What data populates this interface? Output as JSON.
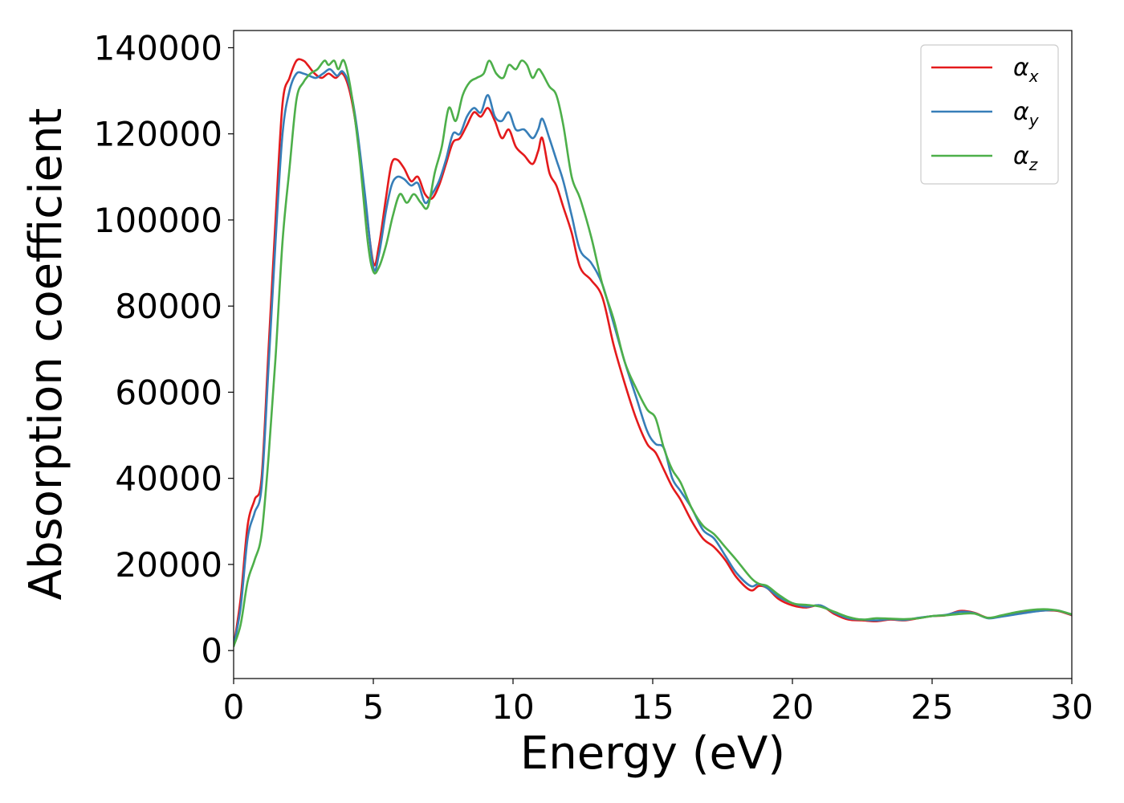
{
  "chart_data": {
    "type": "line",
    "xlabel": "Energy (eV)",
    "ylabel": "Absorption coefficient",
    "xlim": [
      0,
      30
    ],
    "ylim": [
      -6500,
      144000
    ],
    "xticks": [
      0,
      5,
      10,
      15,
      20,
      25,
      30
    ],
    "yticks": [
      0,
      20000,
      40000,
      60000,
      80000,
      100000,
      120000,
      140000
    ],
    "grid": false,
    "legend_position": "top-right",
    "series": [
      {
        "name": "α",
        "subscript": "x",
        "color": "#e41a1c",
        "x": [
          0,
          0.25,
          0.5,
          0.75,
          1.0,
          1.25,
          1.5,
          1.75,
          2.0,
          2.25,
          2.5,
          2.65,
          2.9,
          3.15,
          3.4,
          3.65,
          3.9,
          4.15,
          4.4,
          4.7,
          5.0,
          5.2,
          5.45,
          5.65,
          5.85,
          6.1,
          6.35,
          6.6,
          6.85,
          7.1,
          7.35,
          7.6,
          7.85,
          8.1,
          8.35,
          8.6,
          8.85,
          9.1,
          9.35,
          9.6,
          9.85,
          10.1,
          10.4,
          10.7,
          10.9,
          11.05,
          11.3,
          11.55,
          11.8,
          12.1,
          12.4,
          12.8,
          13.2,
          13.6,
          14.0,
          14.4,
          14.8,
          15.1,
          15.4,
          15.7,
          16.0,
          16.4,
          16.8,
          17.2,
          17.6,
          18.0,
          18.5,
          18.8,
          19.1,
          19.5,
          20.0,
          20.5,
          21.0,
          21.5,
          22.0,
          22.5,
          23.0,
          23.5,
          24.0,
          24.5,
          25.0,
          25.5,
          26.0,
          26.5,
          27.0,
          27.5,
          28.0,
          28.5,
          29.0,
          29.5,
          30.0
        ],
        "y": [
          1000,
          12000,
          29000,
          35000,
          40000,
          70000,
          100000,
          127000,
          133000,
          137000,
          137000,
          136000,
          134000,
          133000,
          134000,
          133000,
          134000,
          130000,
          121000,
          105000,
          90000,
          94000,
          105000,
          113000,
          114000,
          112000,
          109000,
          110000,
          106000,
          105000,
          108000,
          113000,
          118000,
          119000,
          122000,
          125000,
          124000,
          126000,
          123000,
          119000,
          121000,
          117000,
          115000,
          113000,
          116000,
          119000,
          111000,
          108000,
          103000,
          97000,
          89000,
          86000,
          82000,
          71000,
          62000,
          54000,
          48000,
          46000,
          42000,
          38000,
          35000,
          30000,
          26000,
          24000,
          21000,
          17000,
          14000,
          15000,
          14500,
          12000,
          10500,
          10000,
          10500,
          8500,
          7200,
          7000,
          6800,
          7200,
          7000,
          7500,
          8000,
          8200,
          9200,
          8800,
          7600,
          8000,
          8600,
          9000,
          9300,
          9200,
          8200
        ]
      },
      {
        "name": "α",
        "subscript": "y",
        "color": "#377eb8",
        "x": [
          0,
          0.25,
          0.5,
          0.75,
          1.0,
          1.25,
          1.5,
          1.75,
          2.0,
          2.25,
          2.5,
          2.7,
          2.95,
          3.2,
          3.45,
          3.7,
          3.9,
          4.15,
          4.4,
          4.7,
          5.0,
          5.2,
          5.45,
          5.65,
          5.85,
          6.1,
          6.35,
          6.6,
          6.85,
          7.1,
          7.35,
          7.6,
          7.85,
          8.1,
          8.35,
          8.6,
          8.85,
          9.1,
          9.35,
          9.6,
          9.85,
          10.1,
          10.4,
          10.7,
          10.9,
          11.05,
          11.3,
          11.55,
          11.8,
          12.1,
          12.4,
          12.8,
          13.2,
          13.6,
          14.0,
          14.4,
          14.8,
          15.1,
          15.4,
          15.7,
          16.0,
          16.4,
          16.8,
          17.2,
          17.6,
          18.0,
          18.5,
          18.8,
          19.1,
          19.5,
          20.0,
          20.5,
          21.0,
          21.5,
          22.0,
          22.5,
          23.0,
          23.5,
          24.0,
          24.5,
          25.0,
          25.5,
          26.0,
          26.5,
          27.0,
          27.5,
          28.0,
          28.5,
          29.0,
          29.5,
          30.0
        ],
        "y": [
          1000,
          10000,
          26000,
          32000,
          38000,
          66000,
          95000,
          120000,
          130000,
          134000,
          134000,
          133500,
          133000,
          134000,
          135000,
          133500,
          134500,
          131000,
          122000,
          106000,
          89000,
          92000,
          102000,
          108000,
          110000,
          109500,
          108000,
          108500,
          104000,
          106000,
          109000,
          114000,
          120000,
          120000,
          124000,
          126000,
          125000,
          129000,
          124000,
          123000,
          125000,
          121000,
          121000,
          119000,
          121000,
          123500,
          119000,
          114000,
          109000,
          101000,
          93000,
          90000,
          85000,
          76000,
          67000,
          59000,
          51000,
          48000,
          47000,
          40000,
          37000,
          33000,
          28000,
          26000,
          22000,
          18000,
          15000,
          15500,
          14500,
          12500,
          11000,
          10200,
          10500,
          8800,
          7500,
          7200,
          7000,
          7300,
          7100,
          7600,
          8000,
          8300,
          9000,
          8700,
          7500,
          7900,
          8400,
          8900,
          9300,
          9300,
          8300
        ]
      },
      {
        "name": "α",
        "subscript": "z",
        "color": "#4daf4a",
        "x": [
          0,
          0.25,
          0.5,
          0.75,
          1.0,
          1.25,
          1.5,
          1.75,
          2.0,
          2.25,
          2.5,
          2.75,
          3.0,
          3.25,
          3.4,
          3.6,
          3.75,
          3.95,
          4.2,
          4.5,
          4.8,
          5.0,
          5.2,
          5.45,
          5.7,
          5.95,
          6.2,
          6.45,
          6.7,
          6.95,
          7.2,
          7.45,
          7.7,
          7.95,
          8.2,
          8.45,
          8.7,
          8.95,
          9.15,
          9.4,
          9.65,
          9.85,
          10.1,
          10.3,
          10.5,
          10.7,
          10.9,
          11.05,
          11.3,
          11.55,
          11.8,
          12.1,
          12.4,
          12.8,
          13.2,
          13.6,
          14.0,
          14.4,
          14.8,
          15.1,
          15.4,
          15.7,
          16.0,
          16.4,
          16.8,
          17.2,
          17.6,
          18.0,
          18.5,
          18.8,
          19.1,
          19.5,
          20.0,
          20.5,
          21.0,
          21.5,
          22.0,
          22.5,
          23.0,
          23.5,
          24.0,
          24.5,
          25.0,
          25.5,
          26.0,
          26.5,
          27.0,
          27.5,
          28.0,
          28.5,
          29.0,
          29.5,
          30.0
        ],
        "y": [
          1000,
          6000,
          16000,
          21000,
          27000,
          45000,
          68000,
          95000,
          112000,
          128000,
          132000,
          134000,
          135000,
          137000,
          136000,
          137000,
          135000,
          137000,
          130000,
          115000,
          95000,
          88000,
          89000,
          94000,
          101000,
          106000,
          104000,
          106000,
          104000,
          103000,
          111000,
          117000,
          126000,
          123000,
          129000,
          132000,
          133000,
          134000,
          137000,
          134000,
          133000,
          136000,
          135000,
          137000,
          136000,
          133000,
          135000,
          134000,
          131000,
          129000,
          122000,
          110000,
          105000,
          96000,
          85000,
          77000,
          67000,
          61000,
          56000,
          54000,
          47000,
          42000,
          39000,
          33000,
          29000,
          27000,
          24000,
          21000,
          17000,
          15500,
          15000,
          13000,
          11000,
          10600,
          10200,
          9000,
          7800,
          7200,
          7500,
          7400,
          7300,
          7500,
          8000,
          8200,
          8500,
          8600,
          7600,
          8200,
          8900,
          9400,
          9600,
          9300,
          8400
        ]
      }
    ]
  }
}
